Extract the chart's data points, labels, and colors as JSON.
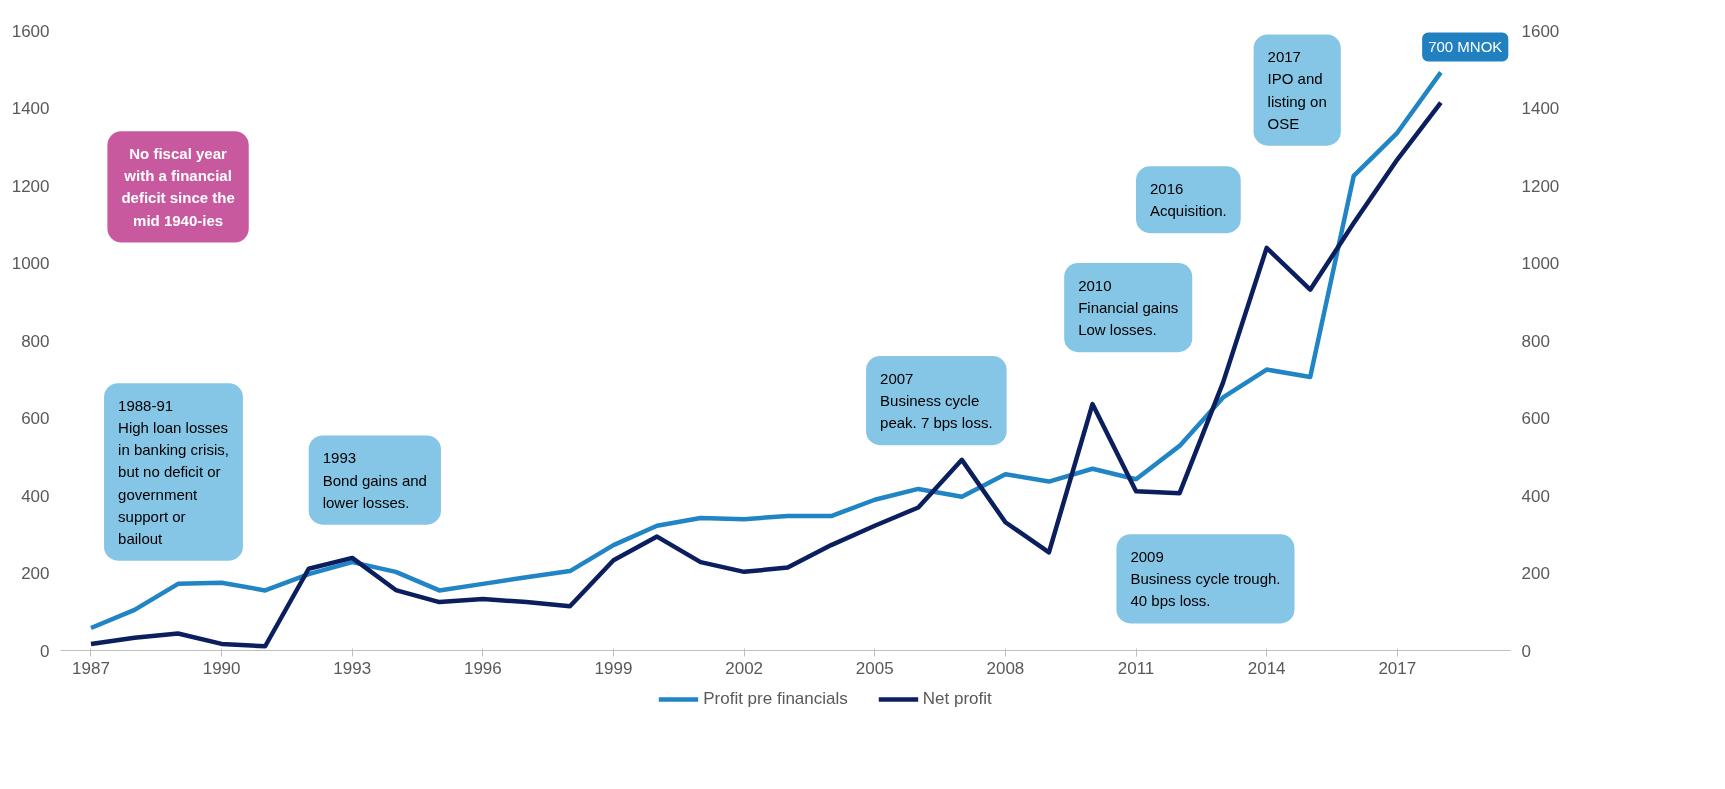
{
  "chart_data": {
    "type": "line",
    "x": [
      1987,
      1988,
      1989,
      1990,
      1991,
      1992,
      1993,
      1994,
      1995,
      1996,
      1997,
      1998,
      1999,
      2000,
      2001,
      2002,
      2003,
      2004,
      2005,
      2006,
      2007,
      2008,
      2009,
      2010,
      2011,
      2012,
      2013,
      2014,
      2015,
      2016,
      2017,
      2018
    ],
    "series": [
      {
        "name": "Profit pre financials",
        "color": "#2185c5",
        "values": [
          58,
          105,
          172,
          175,
          155,
          197,
          228,
          203,
          155,
          172,
          189,
          205,
          272,
          322,
          342,
          339,
          347,
          347,
          389,
          417,
          397,
          455,
          436,
          469,
          442,
          528,
          653,
          725,
          706,
          1225,
          1336,
          1492
        ]
      },
      {
        "name": "Net profit",
        "color": "#0b1f5e",
        "values": [
          17,
          33,
          44,
          17,
          11,
          211,
          239,
          156,
          125,
          133,
          125,
          114,
          233,
          294,
          228,
          203,
          214,
          272,
          322,
          369,
          492,
          331,
          253,
          636,
          411,
          406,
          692,
          1039,
          931,
          1103,
          1267,
          1414
        ]
      }
    ],
    "xlim": [
      1986.3,
      2019.6
    ],
    "xticks": [
      1987,
      1990,
      1993,
      1996,
      1999,
      2002,
      2005,
      2008,
      2011,
      2014,
      2017
    ],
    "ylim": [
      0,
      1600
    ],
    "yticks": [
      0,
      200,
      400,
      600,
      800,
      1000,
      1200,
      1400,
      1600
    ],
    "y2lim": [
      0,
      1600
    ],
    "y2ticks": [
      0,
      200,
      400,
      600,
      800,
      1000,
      1200,
      1400,
      1600
    ],
    "grid": false,
    "legend": "bottom",
    "marker": "none",
    "line_style": "solid",
    "annotations": [
      "No fiscal year\nwith a financial\ndeficit since the\nmid 1940-ies",
      "1988-91\nHigh loan losses\nin banking crisis,\nbut no deficit or\ngovernment\nsupport or\nbailout",
      "1993\nBond gains and\nlower losses.",
      "2007\nBusiness cycle\npeak. 7 bps loss.",
      "2010\nFinancial gains\nLow losses.",
      "2009\nBusiness cycle trough.\n40 bps loss.",
      "2016\nAcquisition.",
      "2017\nIPO and\nlisting on\nOSE",
      "700 MNOK"
    ]
  }
}
